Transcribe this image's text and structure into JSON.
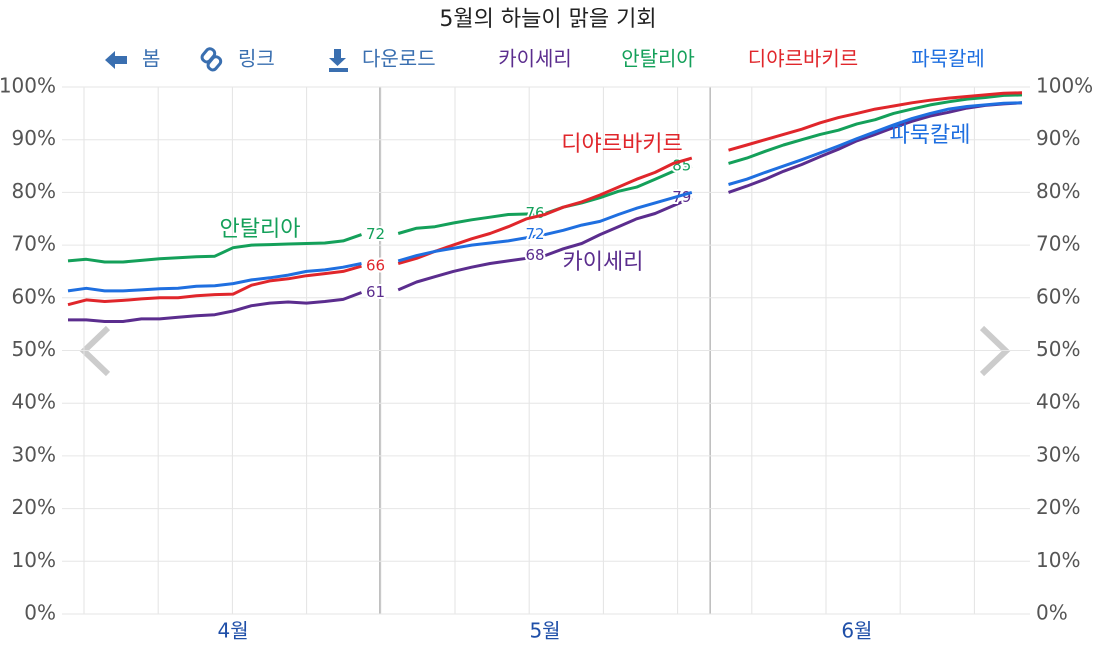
{
  "toolbar": [
    "봄",
    "링크",
    "다운로드"
  ],
  "chart_data": {
    "type": "line",
    "title": "5월의 하늘이 맑을 기회",
    "categories": [
      null,
      null,
      null,
      null,
      null,
      null,
      null,
      null,
      null,
      "4월",
      null,
      null,
      null,
      null,
      null,
      null,
      null,
      null,
      null,
      null,
      null,
      null,
      null,
      null,
      null,
      null,
      "5월",
      null,
      null,
      null,
      null,
      null,
      null,
      null,
      null,
      null,
      null,
      null,
      null,
      null,
      null,
      null,
      null,
      "6월",
      null,
      null,
      null,
      null,
      null,
      null,
      null,
      null,
      null
    ],
    "series": [
      {
        "name": "카이세리",
        "color": "#5b2d8e",
        "values": [
          55.8,
          55.8,
          55.5,
          55.5,
          56,
          56,
          56.3,
          56.6,
          56.8,
          57.5,
          58.5,
          59,
          59.2,
          59,
          59.3,
          59.7,
          61,
          null,
          61.5,
          63,
          64,
          65,
          65.8,
          66.5,
          67,
          67.5,
          68,
          69.3,
          70.3,
          72,
          73.5,
          75,
          76,
          77.5,
          79,
          null,
          80,
          81.2,
          82.5,
          84,
          85.3,
          86.8,
          88.2,
          89.8,
          91,
          92.3,
          93.5,
          94.5,
          95.2,
          96,
          96.5,
          96.8,
          97
        ],
        "value_labels": [
          null,
          null,
          null,
          null,
          null,
          null,
          null,
          null,
          null,
          null,
          null,
          null,
          null,
          null,
          null,
          null,
          "61",
          null,
          null,
          null,
          null,
          null,
          null,
          null,
          null,
          null,
          "68",
          null,
          null,
          null,
          null,
          null,
          null,
          null,
          "79",
          null,
          null,
          null,
          null,
          null,
          null,
          null,
          null,
          null,
          null,
          null,
          null,
          null,
          null,
          null,
          null,
          null,
          null
        ]
      },
      {
        "name": "안탈리아",
        "color": "#14a05a",
        "values": [
          67,
          67.3,
          66.8,
          66.8,
          67.1,
          67.4,
          67.6,
          67.8,
          67.9,
          69.5,
          70,
          70.1,
          70.2,
          70.3,
          70.4,
          70.8,
          72,
          null,
          72.2,
          73.2,
          73.5,
          74.2,
          74.8,
          75.3,
          75.8,
          75.9,
          76,
          77.2,
          78,
          79,
          80.2,
          81,
          82.5,
          84,
          85,
          null,
          85.5,
          86.5,
          87.8,
          89,
          90,
          91,
          91.8,
          93,
          93.8,
          95,
          95.8,
          96.6,
          97.2,
          97.7,
          98,
          98.4,
          98.5
        ],
        "value_labels": [
          null,
          null,
          null,
          null,
          null,
          null,
          null,
          null,
          null,
          null,
          null,
          null,
          null,
          null,
          null,
          null,
          "72",
          null,
          null,
          null,
          null,
          null,
          null,
          null,
          null,
          null,
          "76",
          null,
          null,
          null,
          null,
          null,
          null,
          null,
          "85",
          null,
          null,
          null,
          null,
          null,
          null,
          null,
          null,
          null,
          null,
          null,
          null,
          null,
          null,
          null,
          null,
          null,
          null
        ]
      },
      {
        "name": "디야르바키르",
        "color": "#e0262b",
        "values": [
          58.7,
          59.6,
          59.3,
          59.5,
          59.8,
          60,
          60,
          60.4,
          60.6,
          60.7,
          62.4,
          63.2,
          63.6,
          64.2,
          64.6,
          65,
          66,
          null,
          66.5,
          67.5,
          68.8,
          70,
          71.2,
          72.2,
          73.5,
          75,
          75.8,
          77.2,
          78.2,
          79.5,
          81,
          82.5,
          83.8,
          85.5,
          86.5,
          null,
          88,
          89,
          90,
          91,
          92,
          93.2,
          94.2,
          95,
          95.8,
          96.4,
          97,
          97.5,
          97.9,
          98.2,
          98.5,
          98.8,
          98.9
        ],
        "value_labels": [
          null,
          null,
          null,
          null,
          null,
          null,
          null,
          null,
          null,
          null,
          null,
          null,
          null,
          null,
          null,
          null,
          "66",
          null,
          null,
          null,
          null,
          null,
          null,
          null,
          null,
          null,
          null,
          null,
          null,
          null,
          null,
          null,
          null,
          null,
          null,
          null,
          null,
          null,
          null,
          null,
          null,
          null,
          null,
          null,
          null,
          null,
          null,
          null,
          null,
          null,
          null,
          null,
          null
        ]
      },
      {
        "name": "파묵칼레",
        "color": "#1f6fe0",
        "values": [
          61.3,
          61.8,
          61.3,
          61.3,
          61.5,
          61.7,
          61.8,
          62.2,
          62.3,
          62.7,
          63.4,
          63.8,
          64.3,
          65,
          65.3,
          65.8,
          66.5,
          null,
          67,
          68,
          68.8,
          69.4,
          70,
          70.4,
          70.8,
          71.4,
          72,
          72.8,
          73.8,
          74.5,
          75.8,
          77,
          78,
          79,
          80,
          null,
          81.5,
          82.5,
          83.8,
          85,
          86.2,
          87.5,
          88.8,
          90.2,
          91.5,
          92.8,
          94,
          95,
          95.8,
          96.3,
          96.6,
          96.9,
          97
        ],
        "value_labels": [
          null,
          null,
          null,
          null,
          null,
          null,
          null,
          null,
          null,
          null,
          null,
          null,
          null,
          null,
          null,
          null,
          null,
          null,
          null,
          null,
          null,
          null,
          null,
          null,
          null,
          null,
          "72",
          null,
          null,
          null,
          null,
          null,
          null,
          null,
          null,
          null,
          null,
          null,
          null,
          null,
          null,
          null,
          null,
          null,
          null,
          null,
          null,
          null,
          null,
          null,
          null,
          null,
          null
        ]
      }
    ],
    "ylim": [
      0,
      100
    ],
    "yticks": [
      {
        "value": 0,
        "label": "0%"
      },
      {
        "value": 10,
        "label": "10%"
      },
      {
        "value": 20,
        "label": "20%"
      },
      {
        "value": 30,
        "label": "30%"
      },
      {
        "value": 40,
        "label": "40%"
      },
      {
        "value": 50,
        "label": "50%"
      },
      {
        "value": 60,
        "label": "60%"
      },
      {
        "value": 70,
        "label": "70%"
      },
      {
        "value": 80,
        "label": "80%"
      },
      {
        "value": 90,
        "label": "90%"
      },
      {
        "value": 100,
        "label": "100%"
      }
    ],
    "y2lim": [
      0,
      100
    ],
    "y2ticks": [
      {
        "value": 0,
        "label": "0%"
      },
      {
        "value": 10,
        "label": "10%"
      },
      {
        "value": 20,
        "label": "20%"
      },
      {
        "value": 30,
        "label": "30%"
      },
      {
        "value": 40,
        "label": "40%"
      },
      {
        "value": 50,
        "label": "50%"
      },
      {
        "value": 60,
        "label": "60%"
      },
      {
        "value": 70,
        "label": "70%"
      },
      {
        "value": 80,
        "label": "80%"
      },
      {
        "value": 90,
        "label": "90%"
      },
      {
        "value": 100,
        "label": "100%"
      }
    ],
    "grid": true
  }
}
